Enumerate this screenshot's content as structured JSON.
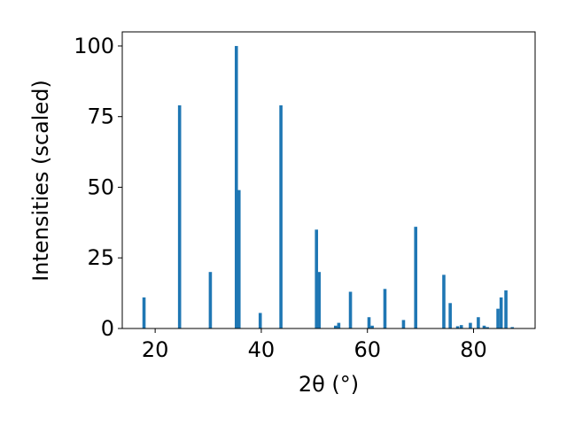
{
  "chart_data": {
    "type": "bar",
    "title": "",
    "xlabel": "2θ (°)",
    "ylabel": "Intensities (scaled)",
    "xlim": [
      13.8,
      91.6
    ],
    "ylim": [
      0,
      105
    ],
    "xticks": [
      20,
      40,
      60,
      80
    ],
    "yticks": [
      0,
      25,
      50,
      75,
      100
    ],
    "grid": false,
    "bar_color": "#1f77b4",
    "x": [
      17.9,
      24.6,
      30.4,
      35.3,
      35.8,
      39.8,
      43.7,
      50.4,
      50.9,
      54.0,
      54.6,
      56.8,
      60.3,
      60.9,
      63.3,
      66.8,
      69.1,
      74.4,
      75.6,
      77.0,
      77.7,
      79.4,
      80.9,
      82.0,
      82.6,
      84.6,
      85.2,
      86.1,
      87.3
    ],
    "values": [
      11,
      79,
      20,
      100,
      49,
      5.5,
      79,
      35,
      20,
      1,
      2,
      13,
      4,
      1,
      14,
      3,
      36,
      19,
      9,
      0.8,
      1.2,
      2,
      4,
      1,
      0.5,
      7,
      11,
      13.5,
      0.5
    ],
    "bar_width": 0.6
  }
}
